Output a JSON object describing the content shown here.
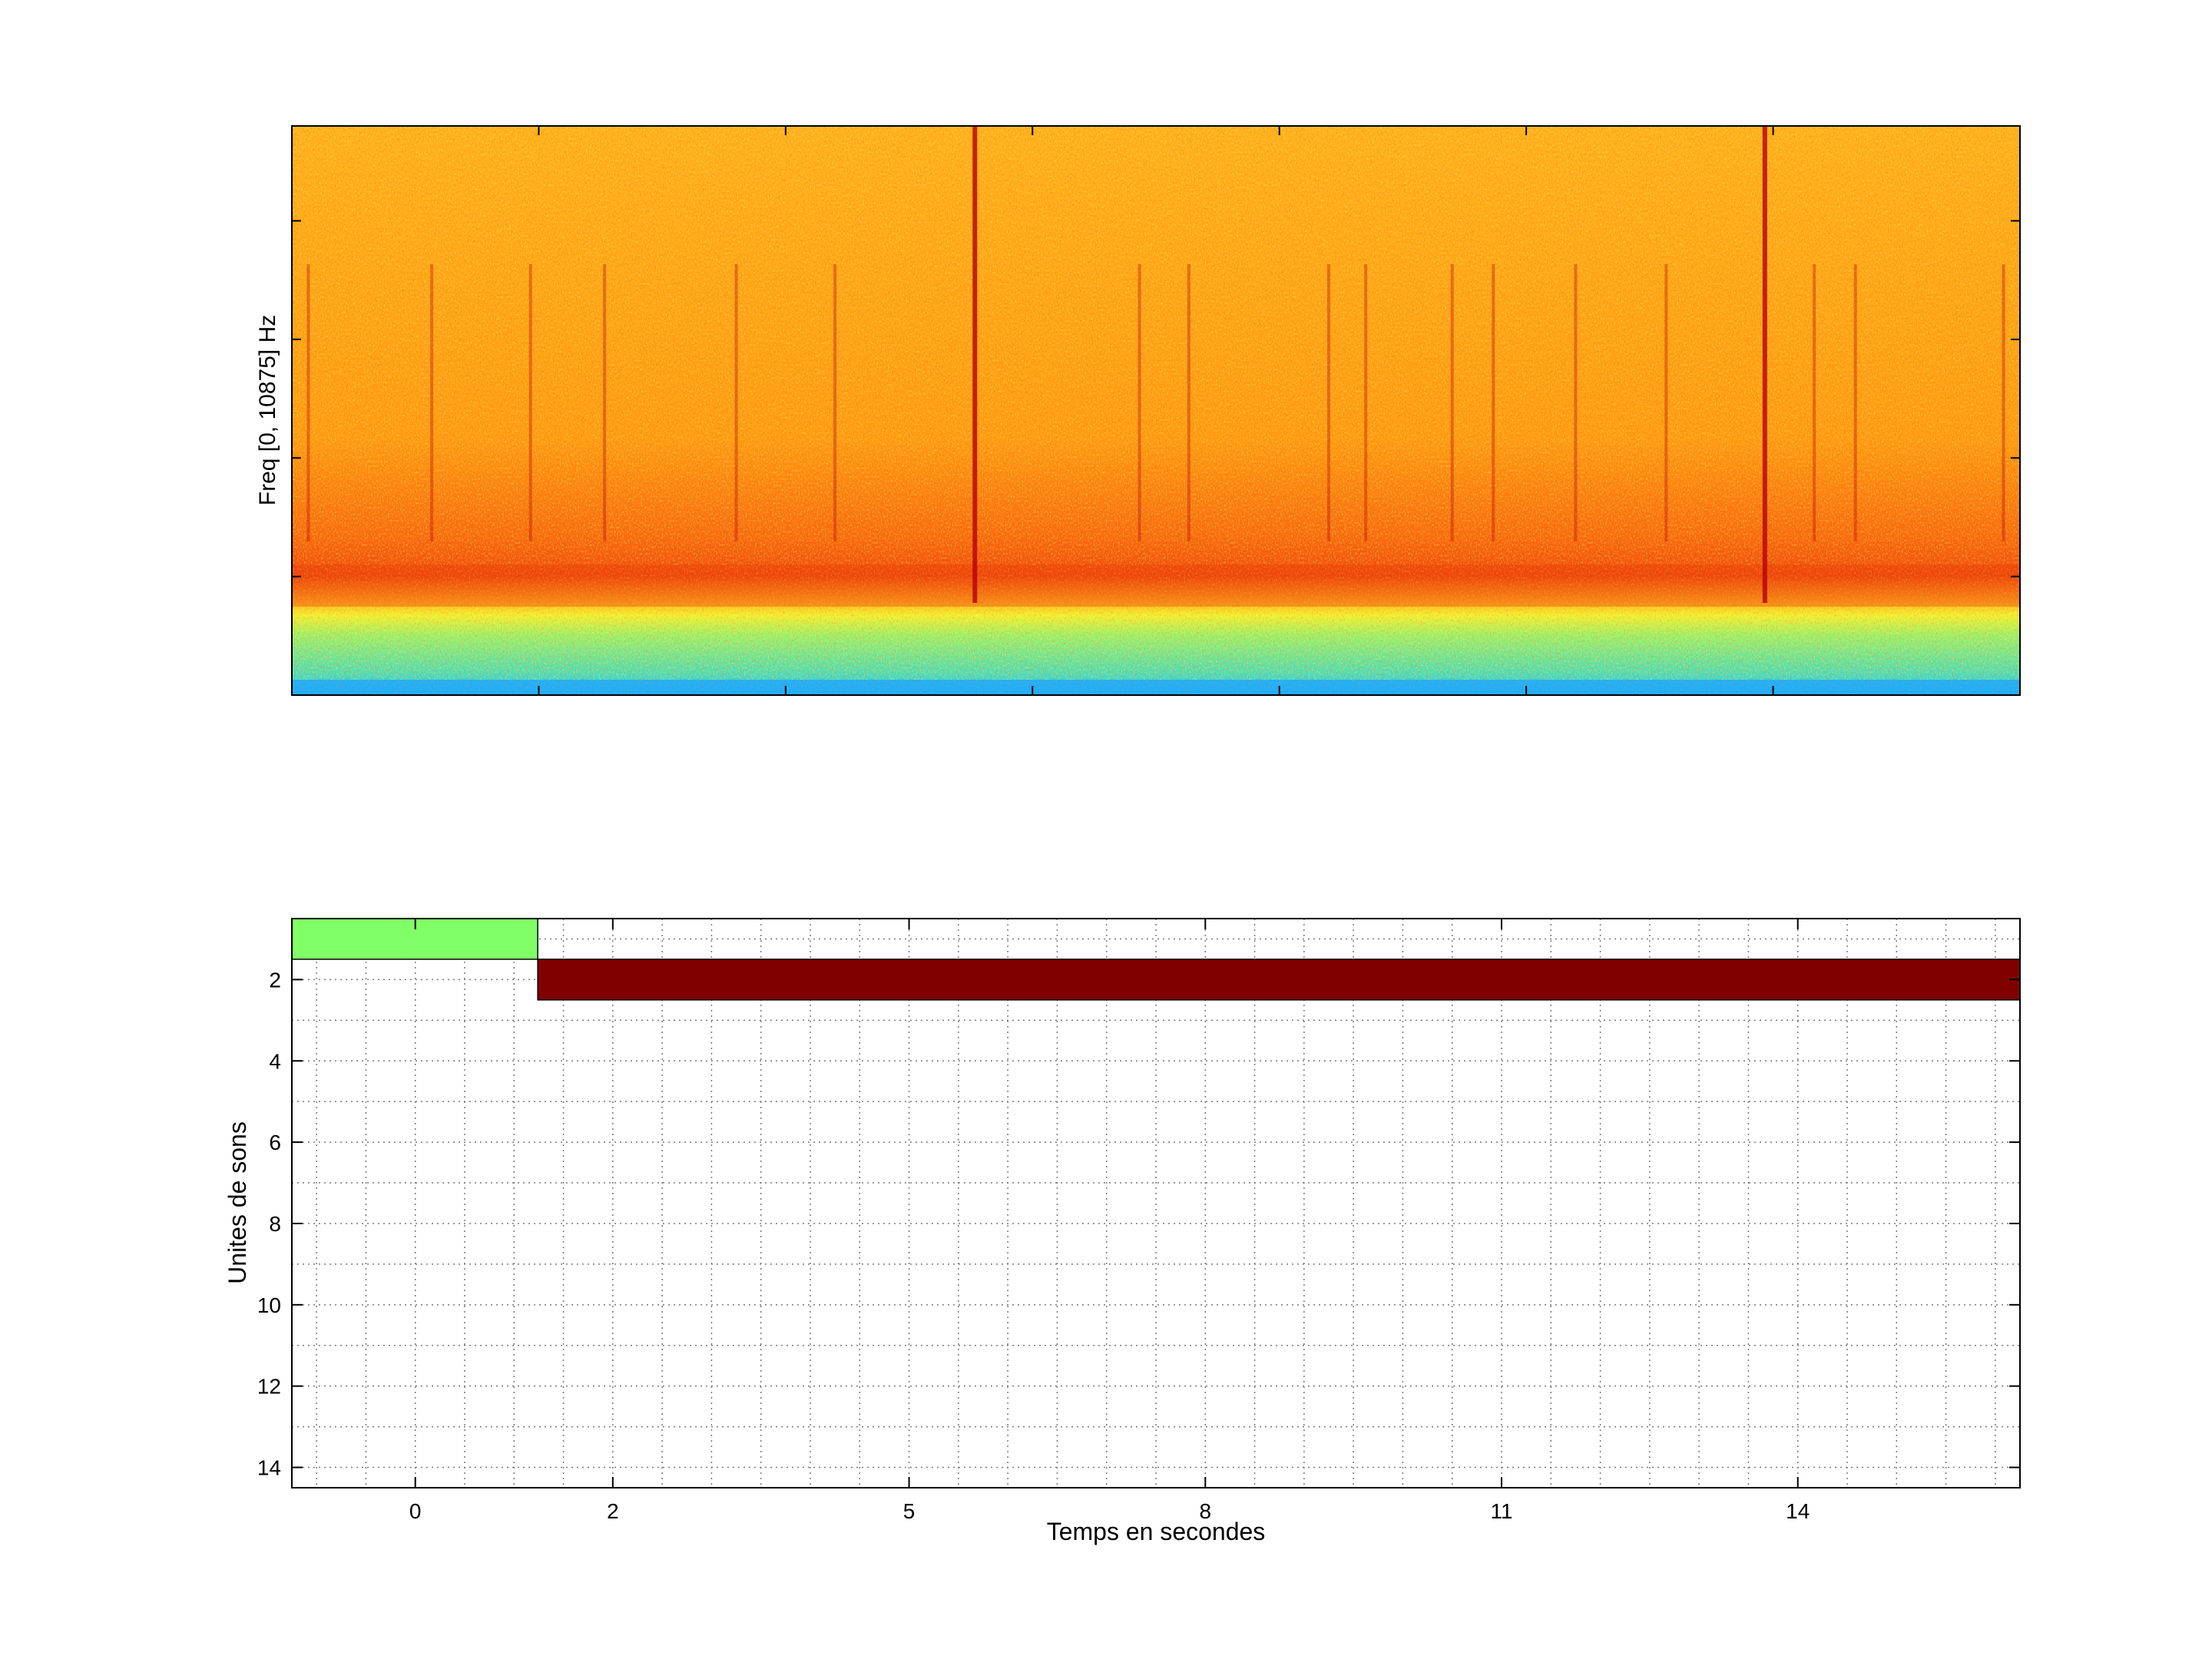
{
  "chart_data": [
    {
      "type": "heatmap",
      "title": "",
      "xlabel": "",
      "ylabel": "Freq [0, 10875] Hz",
      "colormap": "jet",
      "colors": {
        "noise_floor_low": "#22d8ff",
        "low_band": "#64dc96",
        "mid_band": "#ffe619",
        "main_band": "#ffa00a",
        "dense_band": "#f0460a",
        "stripes": "#b4000a"
      },
      "description_bands": [],
      "stripe_times": [
        0.2,
        1.7,
        2.9,
        3.8,
        5.4,
        6.6,
        8.3,
        10.3,
        10.9,
        12.6,
        13.05,
        14.1,
        14.6,
        15.6,
        16.7,
        17.9,
        18.5,
        19.0,
        20.8
      ],
      "strong_stripe_times": [
        8.3,
        17.9
      ],
      "xlim": [
        0,
        21
      ],
      "ylim": [
        0,
        10875
      ]
    },
    {
      "type": "bar",
      "orientation": "horizontal",
      "title": "",
      "xlabel": "Temps en secondes",
      "ylabel": "Unites de sons",
      "grid": true,
      "xlim": [
        -1.25,
        16.25
      ],
      "ylim": [
        14.5,
        0.5
      ],
      "xticks": [
        0,
        2,
        5,
        8,
        11,
        14
      ],
      "xtick_labels": [
        "0",
        "2",
        "5",
        "8",
        "11",
        "14"
      ],
      "yticks": [
        2,
        4,
        6,
        8,
        10,
        12,
        14
      ],
      "ytick_labels": [
        "2",
        "4",
        "6",
        "8",
        "10",
        "12",
        "14"
      ],
      "segments": [
        {
          "unit": 1,
          "start": -1.25,
          "end": 1.24,
          "color": "#80ff66"
        },
        {
          "unit": 2,
          "start": 1.24,
          "end": 16.25,
          "color": "#800000"
        }
      ]
    }
  ]
}
